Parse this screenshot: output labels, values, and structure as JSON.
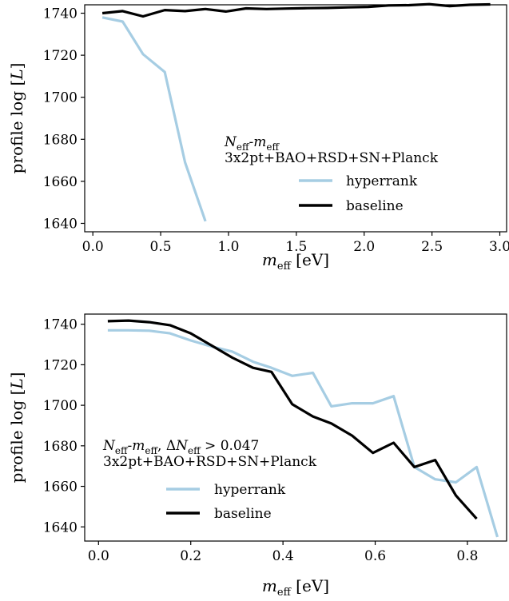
{
  "chart_data": [
    {
      "type": "line",
      "xlabel": "m_eff [eV]",
      "ylabel": "profile log[L]",
      "xlim": [
        -0.06,
        3.05
      ],
      "ylim": [
        1636,
        1744
      ],
      "xticks": [
        0.0,
        0.5,
        1.0,
        1.5,
        2.0,
        2.5,
        3.0
      ],
      "xtick_labels": [
        "0.0",
        "0.5",
        "1.0",
        "1.5",
        "2.0",
        "2.5",
        "3.0"
      ],
      "yticks": [
        1640,
        1660,
        1680,
        1700,
        1720,
        1740
      ],
      "ytick_labels": [
        "1640",
        "1660",
        "1680",
        "1700",
        "1720",
        "1740"
      ],
      "grid": false,
      "legend_placement": "center-right",
      "legend_title_line1": "N_eff-m_eff",
      "legend_title_line2": "3x2pt+BAO+RSD+SN+Planck",
      "series": [
        {
          "name": "hyperrank",
          "color": "#a6cde3",
          "x": [
            0.07,
            0.22,
            0.37,
            0.53,
            0.68,
            0.83
          ],
          "y": [
            1738,
            1736,
            1720.5,
            1712,
            1669,
            1641
          ]
        },
        {
          "name": "baseline",
          "color": "#000000",
          "x": [
            0.07,
            0.22,
            0.37,
            0.53,
            0.68,
            0.83,
            0.98,
            1.13,
            1.28,
            1.43,
            1.58,
            1.73,
            1.88,
            2.03,
            2.18,
            2.33,
            2.48,
            2.63,
            2.78,
            2.93
          ],
          "y": [
            1740,
            1741,
            1738.5,
            1741.5,
            1741,
            1742,
            1740.8,
            1742.3,
            1742,
            1742.2,
            1742.4,
            1742.5,
            1742.8,
            1743,
            1743.7,
            1743.8,
            1744.3,
            1743.4,
            1744,
            1744.2
          ]
        }
      ]
    },
    {
      "type": "line",
      "xlabel": "m_eff [eV]",
      "ylabel": "profile log[L]",
      "xlim": [
        -0.03,
        0.885
      ],
      "ylim": [
        1633,
        1745
      ],
      "xticks": [
        0.0,
        0.2,
        0.4,
        0.6,
        0.8
      ],
      "xtick_labels": [
        "0.0",
        "0.2",
        "0.4",
        "0.6",
        "0.8"
      ],
      "yticks": [
        1640,
        1660,
        1680,
        1700,
        1720,
        1740
      ],
      "ytick_labels": [
        "1640",
        "1660",
        "1680",
        "1700",
        "1720",
        "1740"
      ],
      "grid": false,
      "legend_placement": "lower-left",
      "legend_title_line1": "N_eff-m_eff, ΔN_eff > 0.047",
      "legend_title_line2": "3x2pt+BAO+RSD+SN+Planck",
      "series": [
        {
          "name": "hyperrank",
          "color": "#a6cde3",
          "x": [
            0.02,
            0.065,
            0.11,
            0.155,
            0.2,
            0.245,
            0.29,
            0.335,
            0.375,
            0.42,
            0.465,
            0.505,
            0.55,
            0.595,
            0.64,
            0.685,
            0.73,
            0.775,
            0.82,
            0.865
          ],
          "y": [
            1737,
            1737,
            1736.8,
            1735.5,
            1732,
            1729,
            1726.5,
            1721.5,
            1718.5,
            1714.5,
            1716,
            1699.5,
            1701,
            1701,
            1704.5,
            1669.5,
            1663.5,
            1662,
            1669.5,
            1635
          ]
        },
        {
          "name": "baseline",
          "color": "#000000",
          "x": [
            0.02,
            0.065,
            0.11,
            0.155,
            0.2,
            0.245,
            0.29,
            0.335,
            0.375,
            0.42,
            0.465,
            0.505,
            0.55,
            0.595,
            0.64,
            0.685,
            0.73,
            0.775,
            0.82
          ],
          "y": [
            1741.5,
            1741.8,
            1741,
            1739.5,
            1735.5,
            1729.5,
            1723.5,
            1718.5,
            1716.5,
            1700.5,
            1694.5,
            1691,
            1685,
            1676.5,
            1681.5,
            1669.5,
            1673,
            1655.5,
            1644
          ]
        }
      ]
    }
  ]
}
